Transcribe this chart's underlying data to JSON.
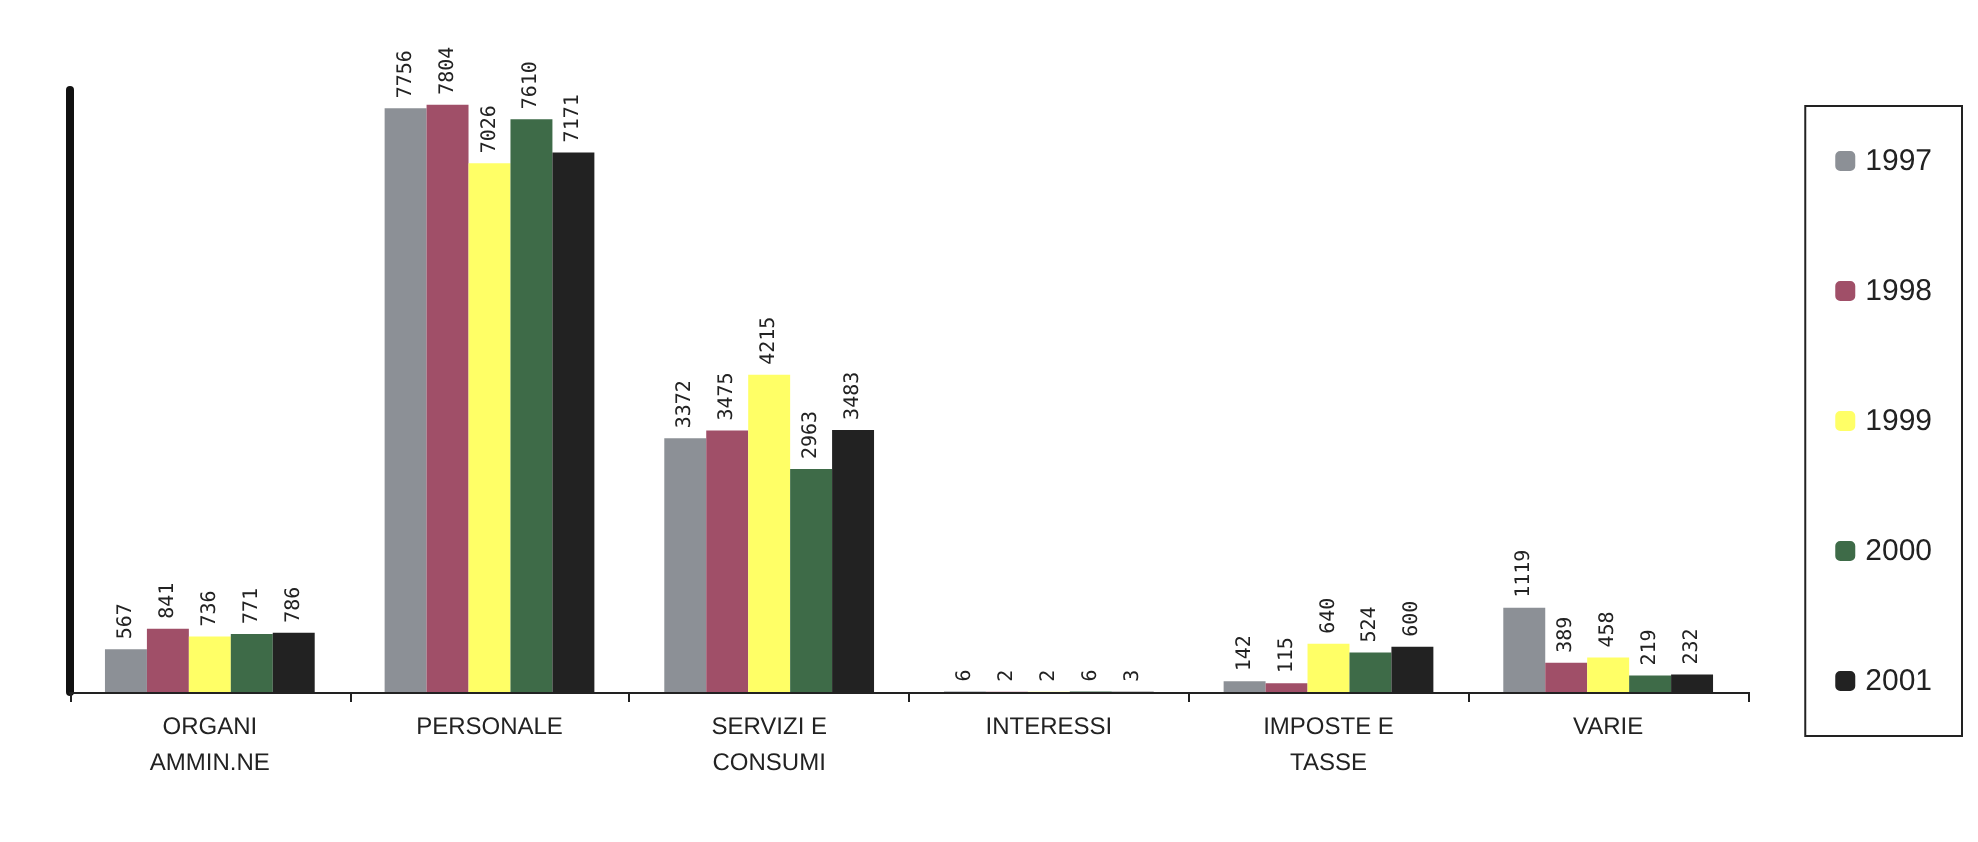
{
  "chart_data": {
    "type": "bar",
    "categories": [
      "ORGANI\nAMMIN.NE",
      "PERSONALE",
      "SERVIZI E\nCONSUMI",
      "INTERESSI",
      "IMPOSTE E\nTASSE",
      "VARIE"
    ],
    "series": [
      {
        "name": "1997",
        "color": "#8c9096",
        "values": [
          567,
          7756,
          3372,
          6,
          142,
          1119
        ]
      },
      {
        "name": "1998",
        "color": "#a04f68",
        "values": [
          841,
          7804,
          3475,
          2,
          115,
          389
        ]
      },
      {
        "name": "1999",
        "color": "#ffff66",
        "values": [
          736,
          7026,
          4215,
          2,
          640,
          458
        ]
      },
      {
        "name": "2000",
        "color": "#3e6b48",
        "values": [
          771,
          7610,
          2963,
          6,
          524,
          219
        ]
      },
      {
        "name": "2001",
        "color": "#222222",
        "values": [
          786,
          7171,
          3483,
          3,
          600,
          232
        ]
      }
    ],
    "data_labels": true,
    "legend": "right",
    "grid": false
  }
}
